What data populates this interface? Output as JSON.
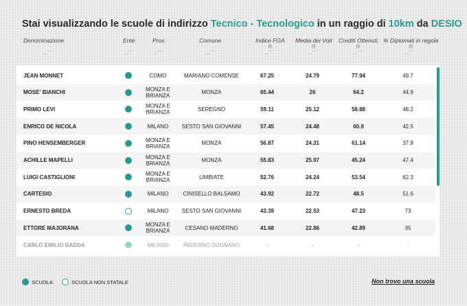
{
  "title": {
    "prefix": "Stai visualizzando le scuole di indirizzo",
    "indirizzo": "Tecnico - Tecnologico",
    "middle": "in un raggio di",
    "radius": "10km",
    "connector": "da",
    "city": "DESIO"
  },
  "columns": {
    "name": "Denominazione",
    "ente": "Ente",
    "prov": "Prov.",
    "comune": "Comune",
    "fga": "Indice FGA",
    "fga_note": "(i)",
    "media": "Media dei Voti",
    "media_note": "(i)",
    "crediti": "Crediti Ottenuti",
    "crediti_note": "(i)",
    "diplomati": "% Diplomati in regola",
    "diplomati_note": "(i)"
  },
  "sort_glyph": "︿﹀",
  "rows": [
    {
      "name": "JEAN MONNET",
      "ente": "scuola",
      "prov": "COMO",
      "comune": "MARIANO COMENSE",
      "fga": "67.25",
      "media": "24.79",
      "crediti": "77.94",
      "diplomati": "49.7"
    },
    {
      "name": "MOSE' BIANCHI",
      "ente": "scuola",
      "prov": "MONZA E BRIANZA",
      "comune": "MONZA",
      "fga": "65.44",
      "media": "26",
      "crediti": "64.2",
      "diplomati": "44.9"
    },
    {
      "name": "PRIMO LEVI",
      "ente": "scuola",
      "prov": "MONZA E BRIANZA",
      "comune": "SEREGNO",
      "fga": "59.11",
      "media": "25.12",
      "crediti": "58.88",
      "diplomati": "48.2"
    },
    {
      "name": "ENRICO DE NICOLA",
      "ente": "scuola",
      "prov": "MILANO",
      "comune": "SESTO SAN GIOVANNI",
      "fga": "57.45",
      "media": "24.48",
      "crediti": "60.9",
      "diplomati": "42.5"
    },
    {
      "name": "PINO HENSEMBERGER",
      "ente": "scuola",
      "prov": "MONZA E BRIANZA",
      "comune": "MONZA",
      "fga": "56.87",
      "media": "24.31",
      "crediti": "61.14",
      "diplomati": "37.8"
    },
    {
      "name": "ACHILLE MAPELLI",
      "ente": "scuola",
      "prov": "MONZA E BRIANZA",
      "comune": "MONZA",
      "fga": "55.83",
      "media": "25.97",
      "crediti": "45.24",
      "diplomati": "47.4"
    },
    {
      "name": "LUIGI CASTIGLIONI",
      "ente": "scuola",
      "prov": "MONZA E BRIANZA",
      "comune": "LIMBIATE",
      "fga": "52.76",
      "media": "24.24",
      "crediti": "53.54",
      "diplomati": "62.3"
    },
    {
      "name": "CARTESIO",
      "ente": "scuola",
      "prov": "MILANO",
      "comune": "CINISELLO BALSAMO",
      "fga": "43.92",
      "media": "22.72",
      "crediti": "48.5",
      "diplomati": "51.6"
    },
    {
      "name": "ERNESTO BREDA",
      "ente": "scuola-non-statale",
      "prov": "MILANO",
      "comune": "SESTO SAN GIOVANNI",
      "fga": "43.39",
      "media": "22.53",
      "crediti": "47.23",
      "diplomati": "73"
    },
    {
      "name": "ETTORE MAJORANA",
      "ente": "scuola",
      "prov": "MONZA E BRIANZA",
      "comune": "CESANO MADERNO",
      "fga": "41.68",
      "media": "22.86",
      "crediti": "42.89",
      "diplomati": "35"
    },
    {
      "name": "CARLO EMILIO GADDA",
      "ente": "scuola",
      "prov": "MILANO",
      "comune": "PADERNO DUGNANO",
      "fga": "-",
      "media": "-",
      "crediti": "-",
      "diplomati": "-",
      "faded": true
    }
  ],
  "legend": {
    "scuola": "SCUOLA",
    "non_statale": "SCUOLA NON STATALE"
  },
  "not_found_link": "Non trovo una scuola",
  "colors": {
    "accent": "#2a9a8e",
    "row_alt": "#f4f4f4"
  }
}
